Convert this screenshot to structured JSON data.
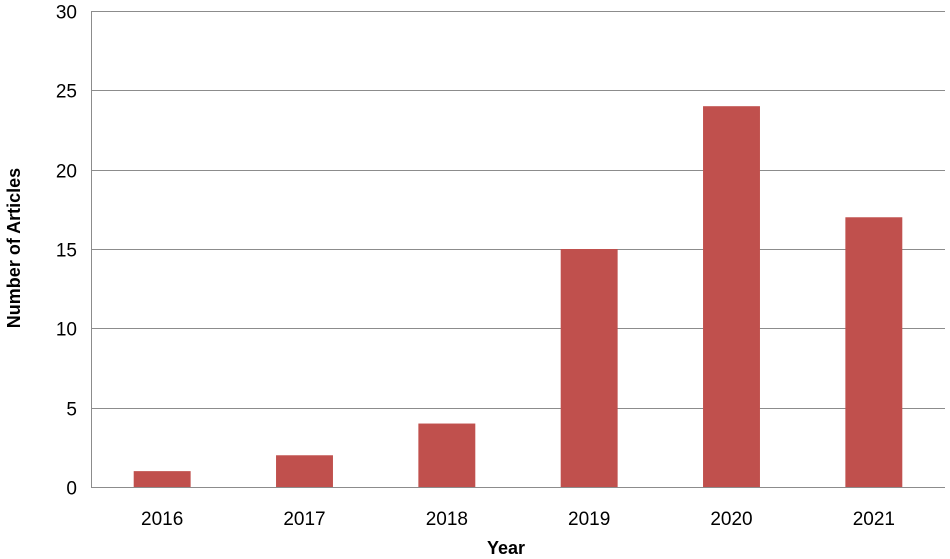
{
  "chart_data": {
    "type": "bar",
    "categories": [
      "2016",
      "2017",
      "2018",
      "2019",
      "2020",
      "2021"
    ],
    "values": [
      1,
      2,
      4,
      15,
      24,
      17
    ],
    "xlabel": "Year",
    "ylabel": "Number of Articles",
    "ylim": [
      0,
      30
    ],
    "yticks": [
      "0",
      "5",
      "10",
      "15",
      "20",
      "25",
      "30"
    ],
    "grid": true,
    "legend": "none",
    "colors": {
      "bar": "#c0504d",
      "gridline": "#8c8c8c",
      "axis": "#8c8c8c"
    }
  }
}
